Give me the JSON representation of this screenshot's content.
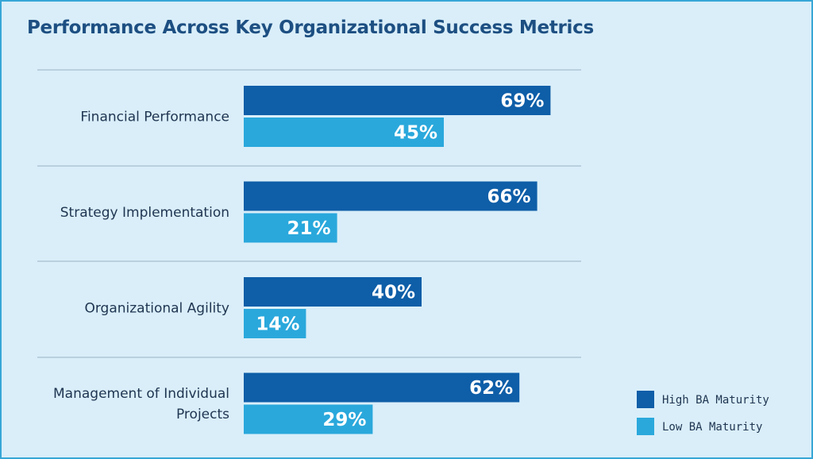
{
  "chart_data": {
    "type": "bar",
    "orientation": "horizontal",
    "title": "Performance Across Key Organizational Success Metrics",
    "categories": [
      [
        "Financial Performance"
      ],
      [
        "Strategy Implementation"
      ],
      [
        "Organizational Agility"
      ],
      [
        "Management of Individual",
        "Projects"
      ]
    ],
    "series": [
      {
        "name": "High BA Maturity",
        "values": [
          69,
          66,
          40,
          62
        ],
        "color": "#0e5ea8"
      },
      {
        "name": "Low BA Maturity",
        "values": [
          45,
          21,
          14,
          29
        ],
        "color": "#2aa8dc"
      }
    ],
    "value_suffix": "%",
    "xlim": [
      0,
      100
    ],
    "grid": false,
    "legend_position": "bottom-right"
  }
}
